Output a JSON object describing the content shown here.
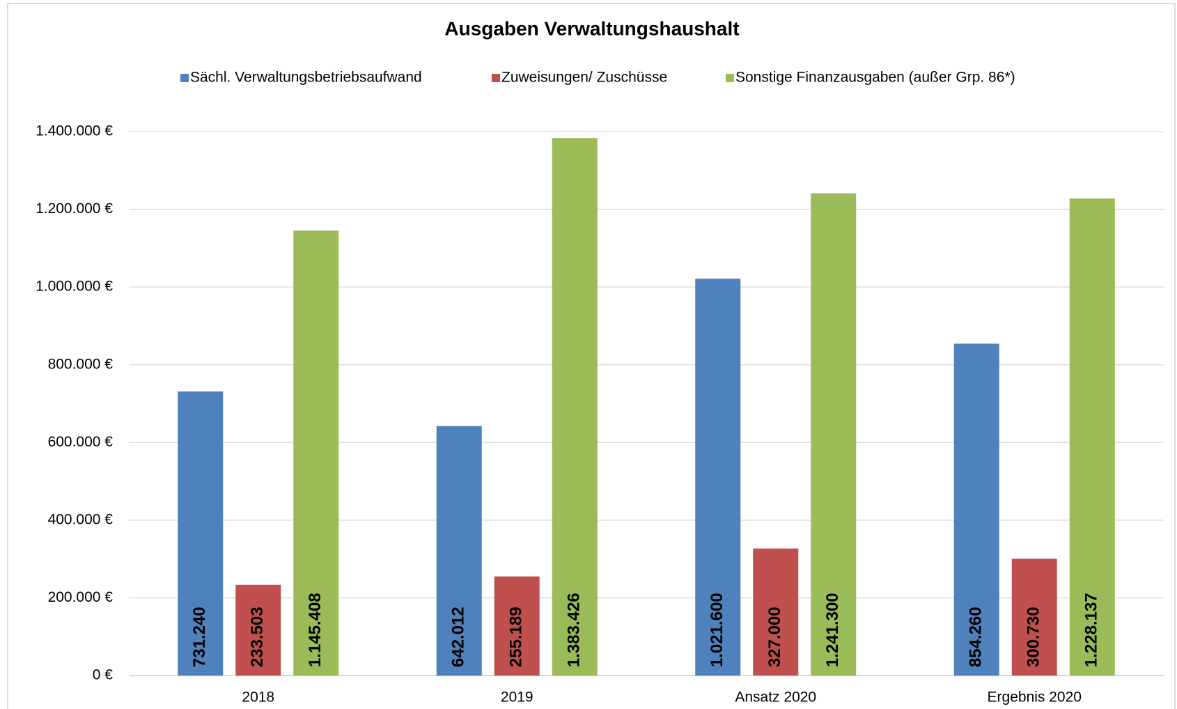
{
  "chart_data": {
    "type": "bar",
    "title": "Ausgaben Verwaltungshaushalt",
    "categories": [
      "2018",
      "2019",
      "Ansatz 2020",
      "Ergebnis 2020"
    ],
    "series": [
      {
        "name": "Sächl. Verwaltungsbetriebsaufwand",
        "color": "#4f81bd",
        "values": [
          731240,
          642012,
          1021600,
          854260
        ],
        "value_labels": [
          "731.240",
          "642.012",
          "1.021.600",
          "854.260"
        ]
      },
      {
        "name": "Zuweisungen/ Zuschüsse",
        "color": "#c0504d",
        "values": [
          233503,
          255189,
          327000,
          300730
        ],
        "value_labels": [
          "233.503",
          "255.189",
          "327.000",
          "300.730"
        ]
      },
      {
        "name": "Sonstige Finanzausgaben (außer Grp. 86*)",
        "color": "#9bbb59",
        "values": [
          1145408,
          1383426,
          1241300,
          1228137
        ],
        "value_labels": [
          "1.145.408",
          "1.383.426",
          "1.241.300",
          "1.228.137"
        ]
      }
    ],
    "ylim": [
      0,
      1400000
    ],
    "yticks": [
      {
        "value": 0,
        "label": "0 €"
      },
      {
        "value": 200000,
        "label": "200.000 €"
      },
      {
        "value": 400000,
        "label": "400.000 €"
      },
      {
        "value": 600000,
        "label": "600.000 €"
      },
      {
        "value": 800000,
        "label": "800.000 €"
      },
      {
        "value": 1000000,
        "label": "1.000.000 €"
      },
      {
        "value": 1200000,
        "label": "1.200.000 €"
      },
      {
        "value": 1400000,
        "label": "1.400.000 €"
      }
    ],
    "grid": true,
    "legend": "top"
  }
}
